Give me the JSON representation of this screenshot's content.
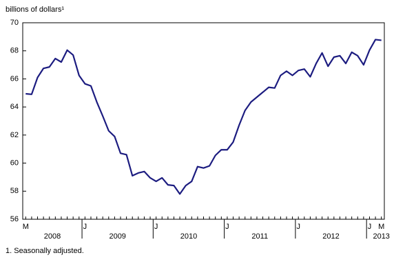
{
  "chart_data": {
    "type": "line",
    "y_label": "billions of dollars¹",
    "footnote": "1. Seasonally adjusted.",
    "categories": [
      "M",
      null,
      null,
      null,
      null,
      null,
      null,
      null,
      null,
      null,
      "J",
      null,
      null,
      null,
      null,
      null,
      null,
      null,
      null,
      null,
      null,
      null,
      "J",
      null,
      null,
      null,
      null,
      null,
      null,
      null,
      null,
      null,
      null,
      null,
      "J",
      null,
      null,
      null,
      null,
      null,
      null,
      null,
      null,
      null,
      null,
      null,
      "J",
      null,
      null,
      null,
      null,
      null,
      null,
      null,
      null,
      null,
      null,
      null,
      "J",
      null,
      "M"
    ],
    "year_groups": [
      {
        "label": "2008",
        "count": 10
      },
      {
        "label": "2009",
        "count": 12
      },
      {
        "label": "2010",
        "count": 12
      },
      {
        "label": "2011",
        "count": 12
      },
      {
        "label": "2012",
        "count": 12
      },
      {
        "label": "2013",
        "count": 3
      }
    ],
    "series": [
      {
        "color": "#1c1c80",
        "values": [
          64.94,
          64.9,
          66.1,
          66.75,
          66.85,
          67.45,
          67.2,
          68.05,
          67.7,
          66.25,
          65.65,
          65.5,
          64.35,
          63.35,
          62.3,
          61.9,
          60.7,
          60.6,
          59.1,
          59.3,
          59.4,
          58.95,
          58.7,
          58.95,
          58.45,
          58.4,
          57.8,
          58.4,
          58.7,
          59.75,
          59.65,
          59.8,
          60.55,
          60.95,
          60.95,
          61.5,
          62.7,
          63.75,
          64.35,
          64.7,
          65.05,
          65.4,
          65.35,
          66.25,
          66.55,
          66.25,
          66.6,
          66.7,
          66.15,
          67.1,
          67.85,
          66.9,
          67.55,
          67.65,
          67.1,
          67.9,
          67.65,
          67.0,
          68.05,
          68.8,
          68.75
        ]
      }
    ],
    "ylim": [
      56,
      70
    ],
    "yticks": [
      56,
      58,
      60,
      62,
      64,
      66,
      68,
      70
    ],
    "grid": false
  }
}
